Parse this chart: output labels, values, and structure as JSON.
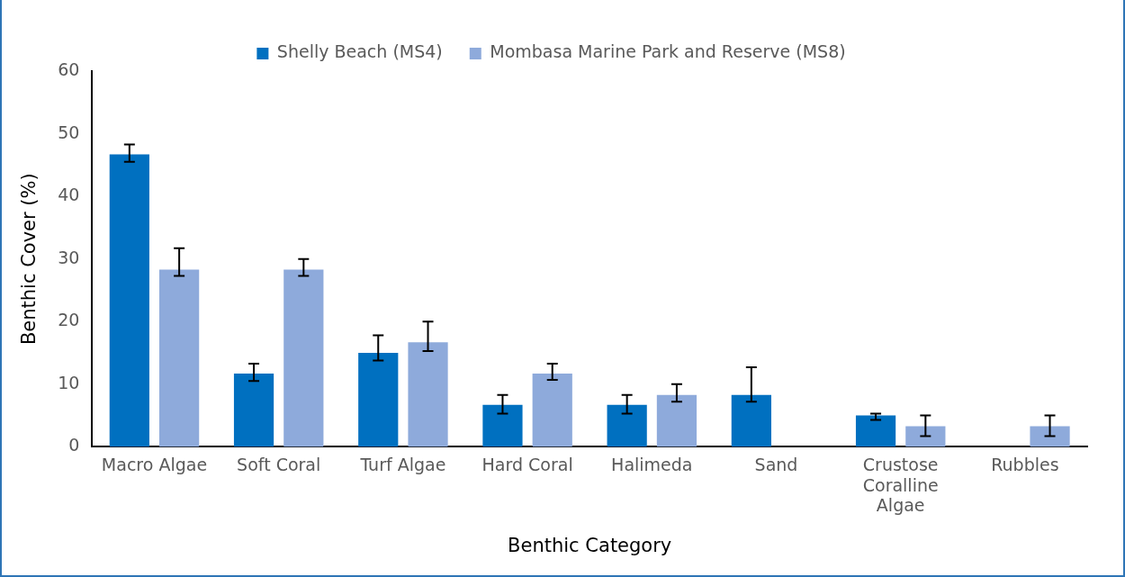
{
  "chart_data": {
    "type": "bar",
    "xlabel": "Benthic Category",
    "ylabel": "Benthic Cover (%)",
    "categories": [
      "Macro Algae",
      "Soft Coral",
      "Turf Algae",
      "Hard Coral",
      "Halimeda",
      "Sand",
      "Crustose Coralline Algae",
      "Rubbles"
    ],
    "series": [
      {
        "name": "Shelly Beach (MS4)",
        "color": "#0070c0",
        "values": [
          46.7,
          11.7,
          15,
          6.7,
          6.7,
          8.3,
          5,
          0
        ],
        "errors": [
          [
            45.5,
            48.3
          ],
          [
            10.5,
            13.3
          ],
          [
            13.8,
            17.8
          ],
          [
            5.3,
            8.3
          ],
          [
            5.3,
            8.3
          ],
          [
            7.2,
            12.7
          ],
          [
            4.3,
            5.3
          ],
          null
        ]
      },
      {
        "name": "Mombasa Marine Park and Reserve (MS8)",
        "color": "#8eaadb",
        "values": [
          28.3,
          28.3,
          16.7,
          11.7,
          8.3,
          0,
          3.3,
          3.3
        ],
        "errors": [
          [
            27.3,
            31.7
          ],
          [
            27.3,
            30
          ],
          [
            15.3,
            20
          ],
          [
            10.7,
            13.3
          ],
          [
            7.2,
            10
          ],
          null,
          [
            1.7,
            5
          ],
          [
            1.7,
            5
          ]
        ]
      }
    ],
    "ylim": [
      0,
      60
    ],
    "yticks": [
      0,
      10,
      20,
      30,
      40,
      50,
      60
    ],
    "grid": false,
    "legend": "top"
  }
}
